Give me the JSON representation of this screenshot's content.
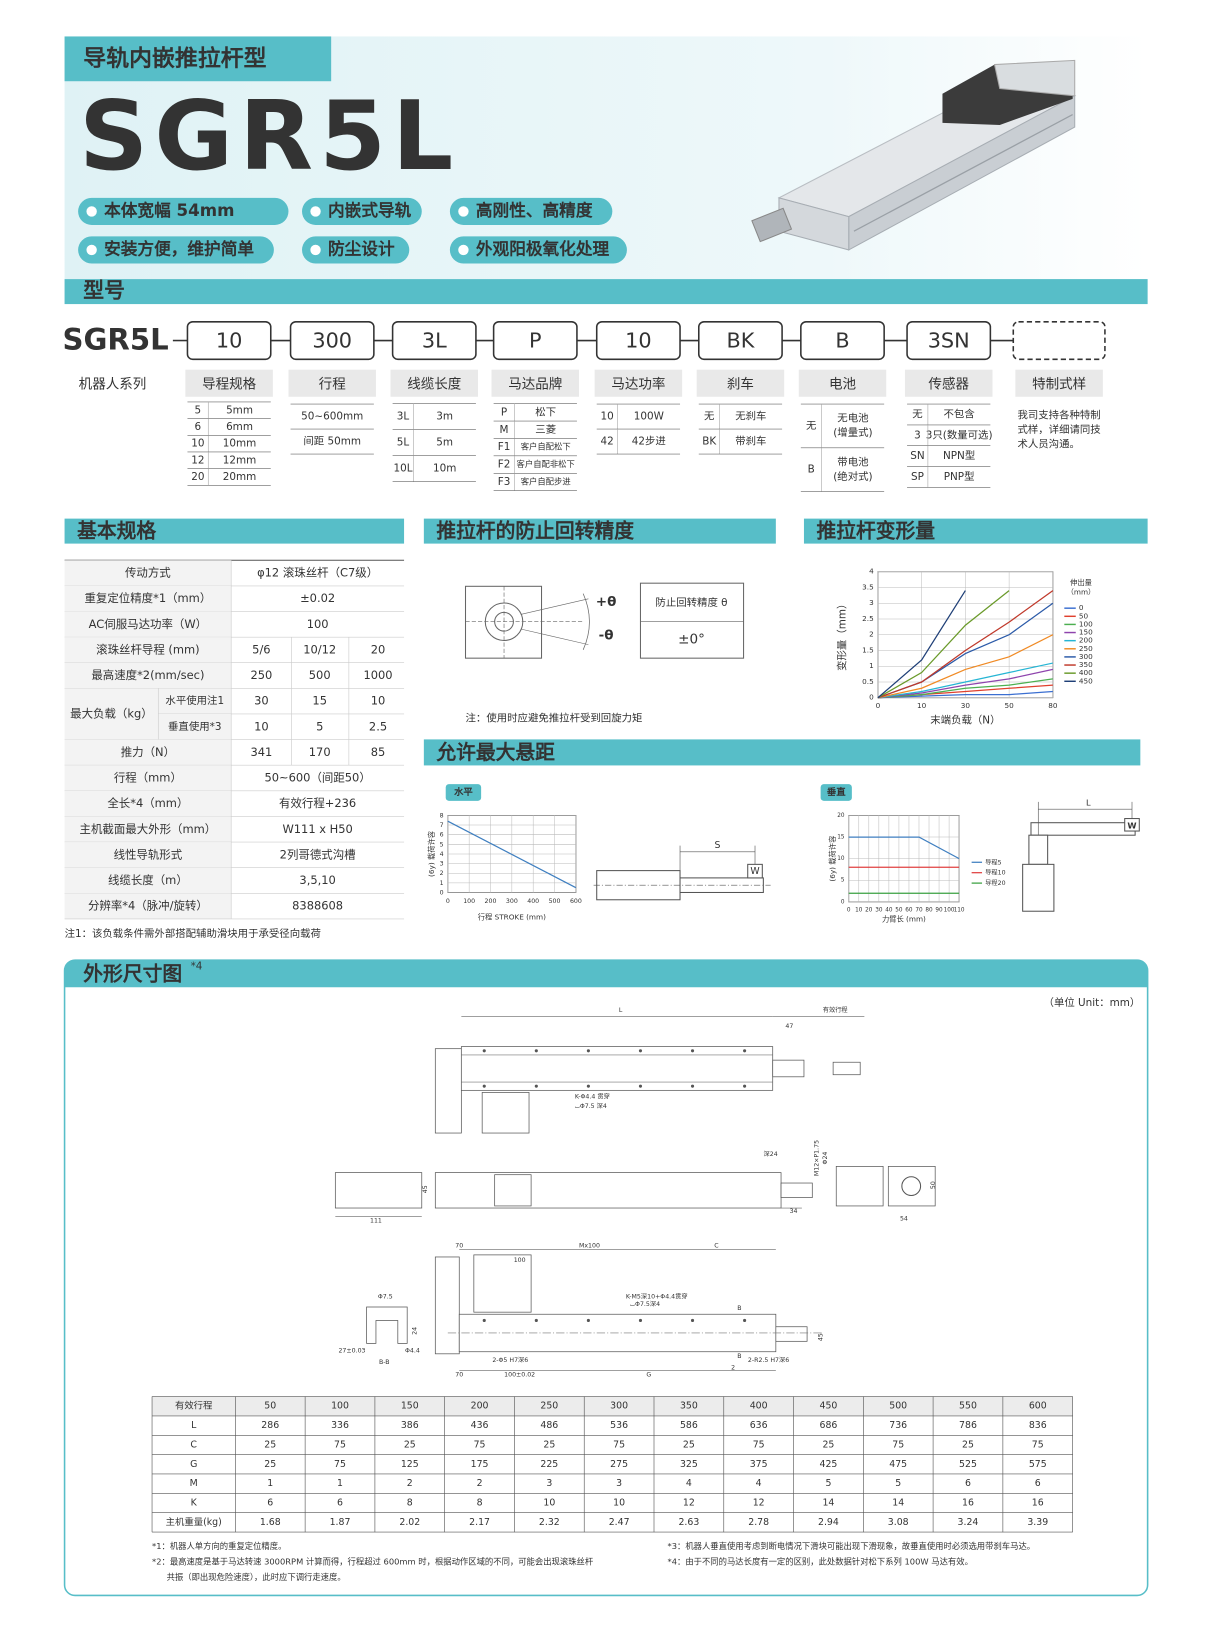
{
  "header": {
    "category": "导轨内嵌推拉杆型",
    "model": "SGR5L",
    "features": [
      "本体宽幅 54mm",
      "内嵌式导轨",
      "高刚性、高精度",
      "安装方便，维护简单",
      "防尘设计",
      "外观阳极氧化处理"
    ]
  },
  "model_code": {
    "title": "型号",
    "prefix": "SGR5L",
    "codes": [
      "10",
      "300",
      "3L",
      "P",
      "10",
      "BK",
      "B",
      "3SN"
    ],
    "columns": [
      {
        "title": "机器人系列"
      },
      {
        "title": "导程规格",
        "rows": [
          [
            "5",
            "5mm"
          ],
          [
            "6",
            "6mm"
          ],
          [
            "10",
            "10mm"
          ],
          [
            "12",
            "12mm"
          ],
          [
            "20",
            "20mm"
          ]
        ]
      },
      {
        "title": "行程",
        "rows": [
          [
            "50~600mm"
          ],
          [
            "间距 50mm"
          ]
        ]
      },
      {
        "title": "线缆长度",
        "rows": [
          [
            "3L",
            "3m"
          ],
          [
            "5L",
            "5m"
          ],
          [
            "10L",
            "10m"
          ]
        ]
      },
      {
        "title": "马达品牌",
        "rows": [
          [
            "P",
            "松下"
          ],
          [
            "M",
            "三菱"
          ],
          [
            "F1",
            "客户自配松下"
          ],
          [
            "F2",
            "客户自配非松下"
          ],
          [
            "F3",
            "客户自配步进"
          ]
        ]
      },
      {
        "title": "马达功率",
        "rows": [
          [
            "10",
            "100W"
          ],
          [
            "42",
            "42步进"
          ]
        ]
      },
      {
        "title": "刹车",
        "rows": [
          [
            "无",
            "无刹车"
          ],
          [
            "BK",
            "带刹车"
          ]
        ]
      },
      {
        "title": "电池",
        "rows": [
          [
            "无",
            "无电池",
            "(增量式)"
          ],
          [
            "B",
            "带电池",
            "(绝对式)"
          ]
        ]
      },
      {
        "title": "传感器",
        "rows": [
          [
            "无",
            "不包含"
          ],
          [
            "3",
            "3只(数量可选)"
          ],
          [
            "SN",
            "NPN型"
          ],
          [
            "SP",
            "PNP型"
          ]
        ]
      },
      {
        "title": "特制式样",
        "lines": [
          "我司支持各种特制",
          "式样，详细请同技",
          "术人员沟通。"
        ]
      }
    ]
  },
  "specs": {
    "title": "基本规格",
    "rows": [
      {
        "label": "传动方式",
        "values": [
          "φ12 滚珠丝杆（C7级）"
        ]
      },
      {
        "label": "重复定位精度*1（mm）",
        "values": [
          "±0.02"
        ]
      },
      {
        "label": "AC伺服马达功率（W）",
        "values": [
          "100"
        ]
      },
      {
        "label": "滚珠丝杆导程 (mm)",
        "values": [
          "5/6",
          "10/12",
          "20"
        ]
      },
      {
        "label": "最高速度*2(mm/sec)",
        "values": [
          "250",
          "500",
          "1000"
        ]
      },
      {
        "label": "最大负载（kg）",
        "subrows": [
          {
            "label": "水平使用注1",
            "values": [
              "30",
              "15",
              "10"
            ]
          },
          {
            "label": "垂直使用*3",
            "values": [
              "10",
              "5",
              "2.5"
            ]
          }
        ]
      },
      {
        "label": "推力（N）",
        "values": [
          "341",
          "170",
          "85"
        ]
      },
      {
        "label": "行程（mm）",
        "values": [
          "50~600（间距50）"
        ]
      },
      {
        "label": "全长*4（mm）",
        "values": [
          "有效行程+236"
        ]
      },
      {
        "label": "主机截面最大外形（mm）",
        "values": [
          "W111 x H50"
        ]
      },
      {
        "label": "线性导轨形式",
        "values": [
          "2列哥德式沟槽"
        ]
      },
      {
        "label": "线缆长度（m）",
        "values": [
          "3,5,10"
        ]
      },
      {
        "label": "分辨率*4（脉冲/旋转）",
        "values": [
          "8388608"
        ]
      }
    ],
    "note": "注1：该负载条件需外部搭配辅助滑块用于承受径向载荷"
  },
  "rotation": {
    "title": "推拉杆的防止回转精度",
    "plus": "+θ",
    "minus": "-θ",
    "table_head": "防止回转精度 θ",
    "table_value": "±0°",
    "note": "注：使用时应避免推拉杆受到回旋力矩"
  },
  "deformation": {
    "title": "推拉杆变形量",
    "chart": {
      "type": "line",
      "x": [
        0,
        10,
        30,
        50,
        80
      ],
      "xlim": [
        0,
        80
      ],
      "xticks": [
        0,
        10,
        30,
        50,
        80
      ],
      "ylim": [
        0,
        4
      ],
      "yticks": [
        0,
        0.5,
        1,
        1.5,
        2,
        2.5,
        3,
        3.5,
        4
      ],
      "x_label": "末端负载（N）",
      "y_label": "变形量（mm）",
      "legend_title": [
        "伸出量",
        "（mm）"
      ],
      "series": [
        {
          "name": "0",
          "color": "#3b6fd1",
          "values": [
            0,
            0.05,
            0.1,
            0.1,
            0.2
          ]
        },
        {
          "name": "50",
          "color": "#e0402e",
          "values": [
            0,
            0.1,
            0.2,
            0.3,
            0.4
          ]
        },
        {
          "name": "100",
          "color": "#4caf50",
          "values": [
            0,
            0.1,
            0.3,
            0.4,
            0.6
          ]
        },
        {
          "name": "150",
          "color": "#8e44ad",
          "values": [
            0,
            0.15,
            0.4,
            0.6,
            0.9
          ]
        },
        {
          "name": "200",
          "color": "#26b5d4",
          "values": [
            0,
            0.2,
            0.5,
            0.8,
            1.1
          ]
        },
        {
          "name": "250",
          "color": "#f08a24",
          "values": [
            0,
            0.3,
            0.9,
            1.3,
            2.0
          ]
        },
        {
          "name": "300",
          "color": "#2b5aa8",
          "values": [
            0,
            0.5,
            1.4,
            2.0,
            3.0
          ]
        },
        {
          "name": "350",
          "color": "#c0392b",
          "values": [
            0,
            0.5,
            1.5,
            2.4,
            3.4
          ]
        },
        {
          "name": "400",
          "color": "#6a9a2a",
          "values": [
            0,
            0.8,
            2.3,
            3.4,
            null
          ]
        },
        {
          "name": "450",
          "color": "#1f3f77",
          "values": [
            0,
            1.2,
            3.4,
            null,
            null
          ]
        }
      ]
    }
  },
  "overhang": {
    "title": "允许最大悬距",
    "horizontal": {
      "tag": "水平",
      "chart": {
        "type": "line",
        "x": [
          0,
          600
        ],
        "values": [
          7.4,
          0.5
        ],
        "color": "#3f7fc0",
        "xlim": [
          0,
          600
        ],
        "xticks": [
          0,
          100,
          200,
          300,
          400,
          500,
          600
        ],
        "ylim": [
          0,
          8
        ],
        "yticks": [
          0,
          1,
          2,
          3,
          4,
          5,
          6,
          7,
          8
        ],
        "x_label": "行程 STROKE (mm)",
        "y_label": "(6y) 载荷许容"
      },
      "diagram_labels": [
        "S",
        "W"
      ]
    },
    "vertical": {
      "tag": "垂直",
      "chart": {
        "type": "line",
        "x": [
          0,
          70,
          110
        ],
        "series": [
          {
            "name": "导程5",
            "color": "#3f7fc0",
            "values": [
              15,
              15,
              10
            ]
          },
          {
            "name": "导程10",
            "color": "#e04040",
            "values": [
              8,
              8,
              8
            ]
          },
          {
            "name": "导程20",
            "color": "#3aa040",
            "values": [
              2,
              2,
              2
            ]
          }
        ],
        "xlim": [
          0,
          110
        ],
        "xticks": [
          0,
          10,
          20,
          30,
          40,
          50,
          60,
          70,
          80,
          90,
          100,
          110
        ],
        "ylim": [
          0,
          20
        ],
        "yticks": [
          0,
          5,
          10,
          15,
          20
        ],
        "x_label": "力臂长 (mm)",
        "y_label": "(6y) 载荷许容"
      },
      "diagram_labels": [
        "L",
        "W"
      ]
    }
  },
  "dimensions": {
    "title": "外形尺寸图",
    "title_note": "*4",
    "unit": "（单位 Unit：mm）",
    "labels": [
      "L",
      "有效行程",
      "47",
      "K-Φ4.4 贯穿",
      "⌴Φ7.5 深4",
      "深24",
      "M12×P1.75",
      "Φ24",
      "34",
      "54",
      "50",
      "111",
      "45",
      "70",
      "Mx100",
      "C",
      "100",
      "K-M5深10+Φ4.4贯穿",
      "⌴Φ7.5深4",
      "B",
      "B",
      "Φ7.5",
      "24",
      "27±0.03",
      "Φ4.4",
      "B-B",
      "2-Φ5 H7深6",
      "2-R2.5 H7深6",
      "70",
      "100±0.02",
      "G",
      "45",
      "2"
    ],
    "table": {
      "header": [
        "有效行程",
        "50",
        "100",
        "150",
        "200",
        "250",
        "300",
        "350",
        "400",
        "450",
        "500",
        "550",
        "600"
      ],
      "rows": [
        [
          "L",
          "286",
          "336",
          "386",
          "436",
          "486",
          "536",
          "586",
          "636",
          "686",
          "736",
          "786",
          "836"
        ],
        [
          "C",
          "25",
          "75",
          "25",
          "75",
          "25",
          "75",
          "25",
          "75",
          "25",
          "75",
          "25",
          "75"
        ],
        [
          "G",
          "25",
          "75",
          "125",
          "175",
          "225",
          "275",
          "325",
          "375",
          "425",
          "475",
          "525",
          "575"
        ],
        [
          "M",
          "1",
          "1",
          "2",
          "2",
          "3",
          "3",
          "4",
          "4",
          "5",
          "5",
          "6",
          "6"
        ],
        [
          "K",
          "6",
          "6",
          "8",
          "8",
          "10",
          "10",
          "12",
          "12",
          "14",
          "14",
          "16",
          "16"
        ],
        [
          "主机重量(kg)",
          "1.68",
          "1.87",
          "2.02",
          "2.17",
          "2.32",
          "2.47",
          "2.63",
          "2.78",
          "2.94",
          "3.08",
          "3.24",
          "3.39"
        ]
      ]
    },
    "footnotes": [
      "*1：机器人单方向的重复定位精度。",
      "*2：最高速度是基于马达转速 3000RPM 计算而得，行程超过 600mm 时，根据动作区域的不同，可能会出现滚珠丝杆",
      "共振（即出现危险速度），此时应下调行走速度。",
      "*3：机器人垂直使用考虑到断电情况下滑块可能出现下滑现象，故垂直使用时必须选用带刹车马达。",
      "*4：由于不同的马达长度有一定的区别，此处数据针对松下系列 100W 马达有效。"
    ]
  }
}
